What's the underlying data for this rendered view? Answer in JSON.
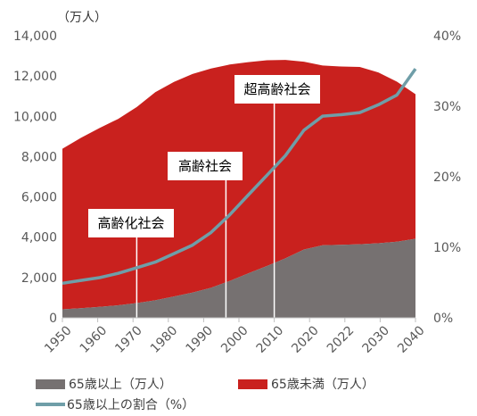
{
  "chart_data": {
    "type": "area",
    "unit_label": "（万人）",
    "left_axis": {
      "min": 0,
      "max": 14000,
      "ticks": [
        "0",
        "2,000",
        "4,000",
        "6,000",
        "8,000",
        "10,000",
        "12,000",
        "14,000"
      ]
    },
    "right_axis": {
      "min": 0,
      "max": 40,
      "ticks": [
        "0%",
        "10%",
        "20%",
        "30%",
        "40%"
      ]
    },
    "x_tick_labels": [
      "1950",
      "1960",
      "1970",
      "1980",
      "1990",
      "2000",
      "2010",
      "2020",
      "2022",
      "2030",
      "2040"
    ],
    "x": [
      1950,
      1955,
      1960,
      1965,
      1970,
      1975,
      1980,
      1985,
      1990,
      1995,
      2000,
      2005,
      2010,
      2015,
      2020,
      2022,
      2025,
      2030,
      2035,
      2040
    ],
    "series": [
      {
        "name": "65歳以上（万人）",
        "color": "#767171",
        "values": [
          420,
          480,
          540,
          620,
          730,
          870,
          1060,
          1250,
          1490,
          1830,
          2200,
          2570,
          2950,
          3390,
          3600,
          3620,
          3650,
          3700,
          3780,
          3920
        ]
      },
      {
        "name": "65歳未満（万人）",
        "color": "#c9211e",
        "values": [
          7970,
          8450,
          8880,
          9250,
          9730,
          10330,
          10650,
          10850,
          10880,
          10740,
          10490,
          10210,
          9850,
          9320,
          8920,
          8850,
          8800,
          8480,
          7940,
          7180
        ]
      },
      {
        "name": "65歳以上の割合（%）",
        "color": "#6f9ea8",
        "axis": "right",
        "values": [
          4.9,
          5.3,
          5.7,
          6.3,
          7.1,
          7.9,
          9.1,
          10.3,
          12.1,
          14.6,
          17.4,
          20.2,
          23.0,
          26.6,
          28.6,
          28.8,
          29.1,
          30.2,
          31.6,
          35.3
        ]
      }
    ],
    "annotations": [
      {
        "text": "高齢化社会",
        "x": 1970
      },
      {
        "text": "高齢社会",
        "x": 1994
      },
      {
        "text": "超高齢社会",
        "x": 2007
      }
    ],
    "legend_position": "bottom"
  }
}
